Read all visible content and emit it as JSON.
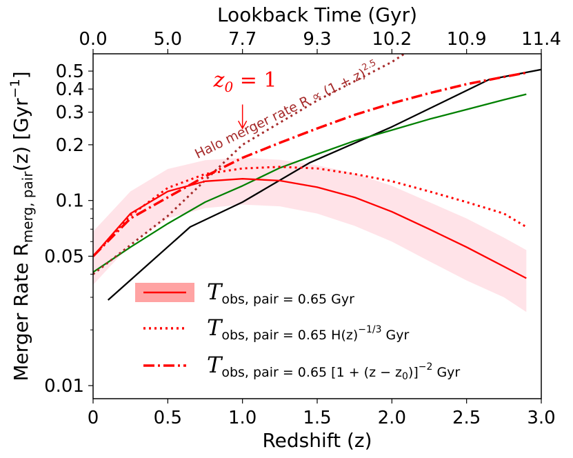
{
  "chart_data": {
    "type": "line",
    "title": "",
    "xlabel": "Redshift (z)",
    "ylabel_main": "Merger Rate R",
    "ylabel_sub": "merg, pair",
    "ylabel_arg": "(z) [Gyr",
    "ylabel_exp": "−1",
    "ylabel_close": "]",
    "top_xlabel": "Lookback Time (Gyr)",
    "xlim": [
      0,
      3.0
    ],
    "ylim": [
      0.0085,
      0.62
    ],
    "yscale": "log",
    "x_ticks": [
      0,
      0.5,
      1.0,
      1.5,
      2.0,
      2.5,
      3.0
    ],
    "x_tick_labels": [
      "0",
      "0.5",
      "1.0",
      "1.5",
      "2.0",
      "2.5",
      "3.0"
    ],
    "y_ticks": [
      0.01,
      0.05,
      0.1,
      0.2,
      0.3,
      0.4,
      0.5
    ],
    "y_tick_labels": [
      "0.01",
      "0.05",
      "0.1",
      "0.2",
      "0.3",
      "0.4",
      "0.5"
    ],
    "top_ticks_z": [
      0,
      0.5,
      1.0,
      1.5,
      2.0,
      2.5,
      3.0
    ],
    "top_tick_labels": [
      "0.0",
      "5.0",
      "7.7",
      "9.3",
      "10.2",
      "10.9",
      "11.4"
    ],
    "annotation_z0": {
      "text_main": "z",
      "text_sub": "0",
      "text_rest": " = 1",
      "color": "#ff0000",
      "x": 1.0,
      "arrow_from_y": 0.33,
      "arrow_to_y": 0.245,
      "label_y": 0.44
    },
    "annotation_halo": {
      "text": "Halo merger rate R ∝ (1 + z)",
      "exp": "2.5",
      "color": "#a52a2a",
      "x": 0.7,
      "y": 0.168
    },
    "series": [
      {
        "name": "black",
        "color": "#000000",
        "style": "solid",
        "x": [
          0.1,
          0.65,
          1.0,
          1.45,
          2.0,
          2.65,
          3.0
        ],
        "y": [
          0.029,
          0.072,
          0.098,
          0.16,
          0.25,
          0.45,
          0.51
        ]
      },
      {
        "name": "green",
        "color": "#008000",
        "style": "solid",
        "x": [
          0.0,
          0.25,
          0.5,
          0.75,
          1.0,
          1.25,
          1.5,
          1.75,
          2.0,
          2.25,
          2.5,
          2.75,
          2.9
        ],
        "y": [
          0.041,
          0.056,
          0.075,
          0.098,
          0.12,
          0.15,
          0.178,
          0.21,
          0.24,
          0.275,
          0.31,
          0.35,
          0.375
        ]
      },
      {
        "name": "halo_dotted",
        "color": "#a52a2a",
        "style": "dotted",
        "x": [
          0.0,
          0.5,
          1.0,
          1.5,
          2.0,
          2.25
        ],
        "y": [
          0.04,
          0.0825,
          0.2,
          0.347,
          0.56,
          0.76
        ]
      },
      {
        "name": "Tobs, pair = 0.65 Gyr",
        "color": "#ff0000",
        "style": "solid",
        "band_color": "#ffc0cb",
        "x": [
          0.0,
          0.25,
          0.5,
          0.75,
          1.0,
          1.25,
          1.5,
          1.75,
          2.0,
          2.25,
          2.5,
          2.75,
          2.9
        ],
        "y": [
          0.05,
          0.085,
          0.112,
          0.127,
          0.131,
          0.128,
          0.118,
          0.104,
          0.087,
          0.07,
          0.056,
          0.044,
          0.038
        ],
        "y_low": [
          0.035,
          0.058,
          0.08,
          0.091,
          0.095,
          0.093,
          0.085,
          0.073,
          0.06,
          0.047,
          0.037,
          0.03,
          0.025
        ],
        "y_high": [
          0.068,
          0.112,
          0.148,
          0.165,
          0.17,
          0.166,
          0.155,
          0.14,
          0.12,
          0.098,
          0.08,
          0.063,
          0.054
        ]
      },
      {
        "name": "Tobs, pair = 0.65 H(z)^-1/3 Gyr",
        "color": "#ff0000",
        "style": "dotted",
        "x": [
          0.0,
          0.25,
          0.5,
          0.75,
          1.0,
          1.25,
          1.5,
          1.75,
          2.0,
          2.25,
          2.5,
          2.75,
          2.9
        ],
        "y": [
          0.05,
          0.083,
          0.117,
          0.139,
          0.149,
          0.152,
          0.149,
          0.139,
          0.127,
          0.112,
          0.098,
          0.085,
          0.072
        ]
      },
      {
        "name": "Tobs, pair = 0.65 [1 + (z − z0)]^-2 Gyr",
        "color": "#ff0000",
        "style": "dashdot",
        "x": [
          0.0,
          0.25,
          0.5,
          0.75,
          1.0,
          1.25,
          1.5,
          1.75,
          2.0,
          2.25,
          2.5,
          2.75,
          2.9
        ],
        "y": [
          0.05,
          0.08,
          0.104,
          0.135,
          0.17,
          0.205,
          0.245,
          0.29,
          0.335,
          0.38,
          0.425,
          0.465,
          0.49
        ]
      }
    ],
    "legend": {
      "position": "lower-left",
      "entries": [
        {
          "sym": "T",
          "sub": "obs, pair",
          "rest": " = 0.65 Gyr",
          "style": "solid",
          "band": true
        },
        {
          "sym": "T",
          "sub": "obs, pair",
          "rest": " = 0.65 H(z)",
          "exp": "−1/3",
          "tail": " Gyr",
          "style": "dotted"
        },
        {
          "sym": "T",
          "sub": "obs, pair",
          "rest": " = 0.65 [1 + (z − z",
          "sub2": "0",
          "rest2": ")]",
          "exp": "−2",
          "tail": " Gyr",
          "style": "dashdot"
        }
      ]
    }
  }
}
